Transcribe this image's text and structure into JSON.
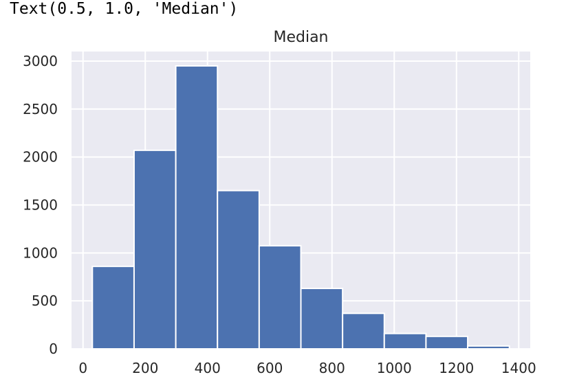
{
  "output_line": "Text(0.5, 1.0, 'Median')",
  "chart_data": {
    "type": "bar",
    "title": "Median",
    "xlabel": "",
    "ylabel": "",
    "bins": [
      {
        "x0": 30,
        "x1": 164,
        "count": 860
      },
      {
        "x0": 164,
        "x1": 298,
        "count": 2070
      },
      {
        "x0": 298,
        "x1": 432,
        "count": 2950
      },
      {
        "x0": 432,
        "x1": 566,
        "count": 1650
      },
      {
        "x0": 566,
        "x1": 700,
        "count": 1075
      },
      {
        "x0": 700,
        "x1": 834,
        "count": 630
      },
      {
        "x0": 834,
        "x1": 968,
        "count": 370
      },
      {
        "x0": 968,
        "x1": 1102,
        "count": 160
      },
      {
        "x0": 1102,
        "x1": 1236,
        "count": 130
      },
      {
        "x0": 1236,
        "x1": 1370,
        "count": 30
      }
    ],
    "xlim": [
      -37,
      1437
    ],
    "ylim": [
      0,
      3100
    ],
    "xticks": [
      0,
      200,
      400,
      600,
      800,
      1000,
      1200,
      1400
    ],
    "yticks": [
      0,
      500,
      1000,
      1500,
      2000,
      2500,
      3000
    ],
    "grid": true,
    "colors": {
      "bar": "#4c72b0",
      "background": "#eaeaf2",
      "grid": "#ffffff",
      "edge": "#ffffff"
    }
  }
}
